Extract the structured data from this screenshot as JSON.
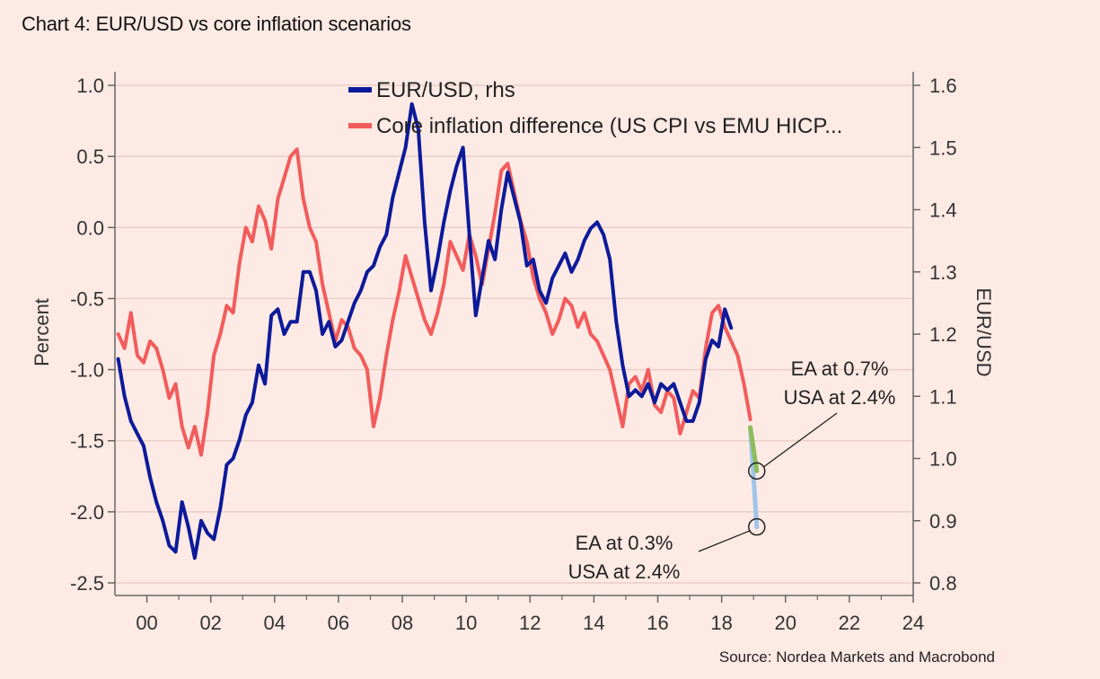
{
  "title": "Chart 4: EUR/USD vs core inflation scenarios",
  "source": "Source: Nordea Markets and Macrobond",
  "chart_data": {
    "type": "line",
    "title": "Chart 4: EUR/USD vs core inflation scenarios",
    "xlabel": "",
    "ylabel": "Percent",
    "y2label": "EUR/USD",
    "xlim": [
      1999,
      2024
    ],
    "ylim": [
      -2.5,
      1.0
    ],
    "y2lim": [
      0.8,
      1.6
    ],
    "grid": true,
    "legend_position": "top-center",
    "x_ticks": [
      2000,
      2002,
      2004,
      2006,
      2008,
      2010,
      2012,
      2014,
      2016,
      2018,
      2020,
      2022,
      2024
    ],
    "x_tick_labels": [
      "00",
      "02",
      "04",
      "06",
      "08",
      "10",
      "12",
      "14",
      "16",
      "18",
      "20",
      "22",
      "24"
    ],
    "y_ticks": [
      1.0,
      0.5,
      0.0,
      -0.5,
      -1.0,
      -1.5,
      -2.0,
      -2.5
    ],
    "y_tick_labels": [
      "1.0",
      "0.5",
      "0.0",
      "-0.5",
      "-1.0",
      "-1.5",
      "-2.0",
      "-2.5"
    ],
    "y2_ticks": [
      1.6,
      1.5,
      1.4,
      1.3,
      1.2,
      1.1,
      1.0,
      0.9,
      0.8
    ],
    "y2_tick_labels": [
      "1.6",
      "1.5",
      "1.4",
      "1.3",
      "1.2",
      "1.1",
      "1.0",
      "0.9",
      "0.8"
    ],
    "series": [
      {
        "name": "EUR/USD, rhs",
        "axis": "right",
        "color": "#0d1a9a",
        "x": [
          1999.1,
          1999.3,
          1999.5,
          1999.7,
          1999.9,
          2000.1,
          2000.3,
          2000.5,
          2000.7,
          2000.9,
          2001.1,
          2001.3,
          2001.5,
          2001.7,
          2001.9,
          2002.1,
          2002.3,
          2002.5,
          2002.7,
          2002.9,
          2003.1,
          2003.3,
          2003.5,
          2003.7,
          2003.9,
          2004.1,
          2004.3,
          2004.5,
          2004.7,
          2004.9,
          2005.1,
          2005.3,
          2005.5,
          2005.7,
          2005.9,
          2006.1,
          2006.3,
          2006.5,
          2006.7,
          2006.9,
          2007.1,
          2007.3,
          2007.5,
          2007.7,
          2007.9,
          2008.1,
          2008.3,
          2008.5,
          2008.7,
          2008.9,
          2009.1,
          2009.3,
          2009.5,
          2009.7,
          2009.9,
          2010.1,
          2010.3,
          2010.5,
          2010.7,
          2010.9,
          2011.1,
          2011.3,
          2011.5,
          2011.7,
          2011.9,
          2012.1,
          2012.3,
          2012.5,
          2012.7,
          2012.9,
          2013.1,
          2013.3,
          2013.5,
          2013.7,
          2013.9,
          2014.1,
          2014.3,
          2014.5,
          2014.7,
          2014.9,
          2015.1,
          2015.3,
          2015.5,
          2015.7,
          2015.9,
          2016.1,
          2016.3,
          2016.5,
          2016.7,
          2016.9,
          2017.1,
          2017.3,
          2017.5,
          2017.7,
          2017.9,
          2018.1,
          2018.3
        ],
        "values": [
          1.16,
          1.1,
          1.06,
          1.04,
          1.02,
          0.97,
          0.93,
          0.9,
          0.86,
          0.85,
          0.93,
          0.89,
          0.84,
          0.9,
          0.88,
          0.87,
          0.92,
          0.99,
          1.0,
          1.03,
          1.07,
          1.09,
          1.15,
          1.12,
          1.23,
          1.24,
          1.2,
          1.22,
          1.22,
          1.3,
          1.3,
          1.27,
          1.2,
          1.22,
          1.18,
          1.19,
          1.22,
          1.25,
          1.27,
          1.3,
          1.31,
          1.34,
          1.36,
          1.42,
          1.46,
          1.5,
          1.57,
          1.53,
          1.38,
          1.27,
          1.32,
          1.38,
          1.43,
          1.47,
          1.5,
          1.36,
          1.23,
          1.29,
          1.35,
          1.32,
          1.4,
          1.46,
          1.42,
          1.38,
          1.31,
          1.32,
          1.27,
          1.25,
          1.29,
          1.31,
          1.33,
          1.3,
          1.32,
          1.35,
          1.37,
          1.38,
          1.36,
          1.32,
          1.22,
          1.15,
          1.1,
          1.11,
          1.1,
          1.12,
          1.09,
          1.12,
          1.11,
          1.12,
          1.09,
          1.06,
          1.06,
          1.09,
          1.16,
          1.19,
          1.18,
          1.24,
          1.21
        ]
      },
      {
        "name": "Core inflation difference (US CPI vs EMU HICP...",
        "axis": "left",
        "color": "#f25c5c",
        "x": [
          1999.1,
          1999.3,
          1999.5,
          1999.7,
          1999.9,
          2000.1,
          2000.3,
          2000.5,
          2000.7,
          2000.9,
          2001.1,
          2001.3,
          2001.5,
          2001.7,
          2001.9,
          2002.1,
          2002.3,
          2002.5,
          2002.7,
          2002.9,
          2003.1,
          2003.3,
          2003.5,
          2003.7,
          2003.9,
          2004.1,
          2004.3,
          2004.5,
          2004.7,
          2004.9,
          2005.1,
          2005.3,
          2005.5,
          2005.7,
          2005.9,
          2006.1,
          2006.3,
          2006.5,
          2006.7,
          2006.9,
          2007.1,
          2007.3,
          2007.5,
          2007.7,
          2007.9,
          2008.1,
          2008.3,
          2008.5,
          2008.7,
          2008.9,
          2009.1,
          2009.3,
          2009.5,
          2009.7,
          2009.9,
          2010.1,
          2010.3,
          2010.5,
          2010.7,
          2010.9,
          2011.1,
          2011.3,
          2011.5,
          2011.7,
          2011.9,
          2012.1,
          2012.3,
          2012.5,
          2012.7,
          2012.9,
          2013.1,
          2013.3,
          2013.5,
          2013.7,
          2013.9,
          2014.1,
          2014.3,
          2014.5,
          2014.7,
          2014.9,
          2015.1,
          2015.3,
          2015.5,
          2015.7,
          2015.9,
          2016.1,
          2016.3,
          2016.5,
          2016.7,
          2016.9,
          2017.1,
          2017.3,
          2017.5,
          2017.7,
          2017.9,
          2018.1,
          2018.3,
          2018.5,
          2018.7,
          2018.9
        ],
        "values": [
          -0.75,
          -0.85,
          -0.6,
          -0.9,
          -0.95,
          -0.8,
          -0.85,
          -1.0,
          -1.2,
          -1.1,
          -1.4,
          -1.55,
          -1.4,
          -1.6,
          -1.3,
          -0.9,
          -0.75,
          -0.55,
          -0.6,
          -0.25,
          0.0,
          -0.1,
          0.15,
          0.05,
          -0.15,
          0.2,
          0.35,
          0.5,
          0.55,
          0.2,
          0.0,
          -0.1,
          -0.4,
          -0.6,
          -0.8,
          -0.65,
          -0.7,
          -0.85,
          -0.9,
          -1.0,
          -1.4,
          -1.2,
          -0.9,
          -0.65,
          -0.45,
          -0.2,
          -0.35,
          -0.5,
          -0.65,
          -0.75,
          -0.6,
          -0.4,
          -0.1,
          -0.2,
          -0.3,
          -0.05,
          -0.2,
          -0.4,
          -0.15,
          0.1,
          0.4,
          0.45,
          0.25,
          0.05,
          -0.1,
          -0.35,
          -0.5,
          -0.6,
          -0.75,
          -0.65,
          -0.5,
          -0.55,
          -0.7,
          -0.6,
          -0.75,
          -0.8,
          -0.9,
          -1.0,
          -1.2,
          -1.4,
          -1.1,
          -1.05,
          -1.15,
          -1.0,
          -1.25,
          -1.3,
          -1.15,
          -1.2,
          -1.45,
          -1.3,
          -1.15,
          -1.2,
          -0.85,
          -0.6,
          -0.55,
          -0.7,
          -0.8,
          -0.9,
          -1.1,
          -1.35
        ]
      },
      {
        "name": "",
        "axis": "right",
        "color": "#9fc5ea",
        "role": "scenario",
        "x": [
          2018.9,
          2019.1
        ],
        "values": [
          1.05,
          0.89
        ]
      },
      {
        "name": "",
        "axis": "right",
        "color": "#8cbd5a",
        "role": "scenario",
        "x": [
          2018.9,
          2019.1
        ],
        "values": [
          1.05,
          0.98
        ]
      }
    ],
    "annotations": [
      {
        "lines": [
          "EA at 0.7%",
          "USA at 2.4%"
        ],
        "x": 2019.1,
        "y_right": 0.98
      },
      {
        "lines": [
          "EA at 0.3%",
          "USA at 2.4%"
        ],
        "x": 2019.1,
        "y_right": 0.89
      }
    ]
  }
}
